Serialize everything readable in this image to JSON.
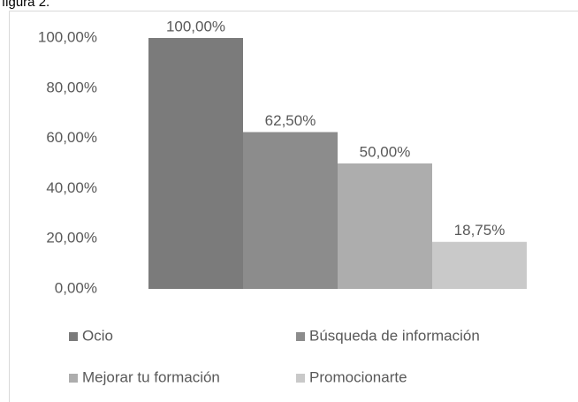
{
  "caption": "figura 2.",
  "chart_data": {
    "type": "bar",
    "series": [
      {
        "name": "Ocio",
        "color": "#7b7b7b",
        "values": [
          100
        ],
        "value_labels": [
          "100,00%"
        ]
      },
      {
        "name": "Búsqueda de información",
        "color": "#8c8c8c",
        "values": [
          62.5
        ],
        "value_labels": [
          "62,50%"
        ]
      },
      {
        "name": "Mejorar tu formación",
        "color": "#adadad",
        "values": [
          50
        ],
        "value_labels": [
          "50,00%"
        ]
      },
      {
        "name": "Promocionarte",
        "color": "#c9c9c9",
        "values": [
          18.75
        ],
        "value_labels": [
          "18,75%"
        ]
      }
    ],
    "ylim": [
      0,
      100
    ],
    "yticks": [
      {
        "value": 0,
        "label": "0,00%"
      },
      {
        "value": 20,
        "label": "20,00%"
      },
      {
        "value": 40,
        "label": "40,00%"
      },
      {
        "value": 60,
        "label": "60,00%"
      },
      {
        "value": 80,
        "label": "80,00%"
      },
      {
        "value": 100,
        "label": "100,00%"
      }
    ],
    "grid": false,
    "legend": "bottom"
  }
}
